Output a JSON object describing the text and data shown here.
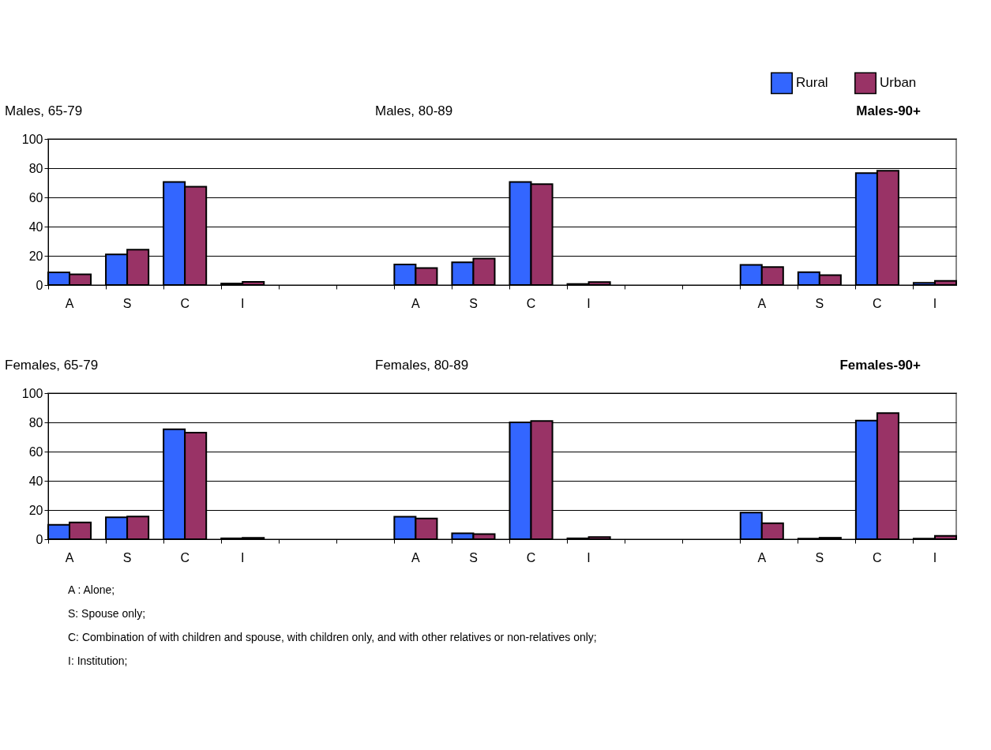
{
  "chart_data": [
    {
      "type": "bar",
      "categories": [
        "A",
        "S",
        "C",
        "I",
        null,
        null,
        "A",
        "S",
        "C",
        "I",
        null,
        null,
        "A",
        "S",
        "C",
        "I"
      ],
      "series": [
        {
          "name": "Rural",
          "color": "#3366ff",
          "values": [
            8.6,
            21,
            70.5,
            1,
            null,
            null,
            14,
            15.5,
            70.5,
            0.7,
            null,
            null,
            13.8,
            8.8,
            76.6,
            1.5
          ]
        },
        {
          "name": "Urban",
          "color": "#993366",
          "values": [
            7.3,
            24.2,
            67.3,
            2.2,
            null,
            null,
            11.6,
            18.1,
            69,
            2,
            null,
            null,
            12.3,
            6.7,
            78.2,
            2.8
          ]
        }
      ],
      "ylim": [
        0,
        100
      ],
      "yticks": [
        0,
        20,
        40,
        60,
        80,
        100
      ],
      "grid": "y",
      "legend": "top right",
      "annotations": [
        "Males, 65-79",
        "Males, 80-89",
        "Males-90+"
      ]
    },
    {
      "type": "bar",
      "categories": [
        "A",
        "S",
        "C",
        "I",
        null,
        null,
        "A",
        "S",
        "C",
        "I",
        null,
        null,
        "A",
        "S",
        "C",
        "I"
      ],
      "series": [
        {
          "color": "#3366ff",
          "values": [
            9.8,
            15,
            75.3,
            0.6,
            null,
            null,
            15.4,
            4,
            80,
            0.6,
            null,
            null,
            18.3,
            0.4,
            81.2,
            0.4
          ]
        },
        {
          "color": "#993366",
          "values": [
            11.5,
            15.6,
            73,
            1,
            null,
            null,
            14.2,
            3.5,
            81,
            1.5,
            null,
            null,
            11,
            1,
            86.3,
            2.3
          ]
        }
      ],
      "ylim": [
        0,
        100
      ],
      "yticks": [
        0,
        20,
        40,
        60,
        80,
        100
      ],
      "grid": "y",
      "legend": false,
      "annotations": [
        "Females, 65-79",
        "Females, 80-89",
        "Females-90+",
        "A :  Alone;",
        "S:   Spouse only;",
        "C:   Combination of with children and spouse, with children only, and with other relatives or non-relatives only;",
        "I:    Institution;"
      ]
    }
  ]
}
